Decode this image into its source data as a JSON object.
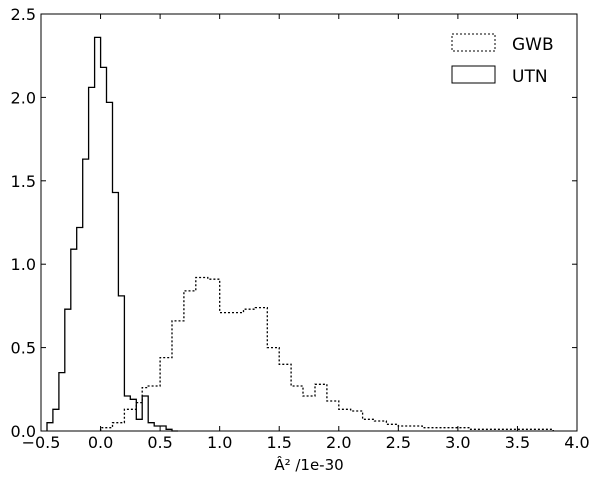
{
  "chart_data": {
    "type": "step-histogram",
    "xlabel": "Â² /1e-30",
    "xlim": [
      -0.5,
      4.0
    ],
    "ylim": [
      0.0,
      2.5
    ],
    "xticks": [
      "−0.5",
      "0.0",
      "0.5",
      "1.0",
      "1.5",
      "2.0",
      "2.5",
      "3.0",
      "3.5",
      "4.0"
    ],
    "xtick_values": [
      -0.5,
      0.0,
      0.5,
      1.0,
      1.5,
      2.0,
      2.5,
      3.0,
      3.5,
      4.0
    ],
    "yticks": [
      "0.0",
      "0.5",
      "1.0",
      "1.5",
      "2.0",
      "2.5"
    ],
    "ytick_values": [
      0.0,
      0.5,
      1.0,
      1.5,
      2.0,
      2.5
    ],
    "grid": false,
    "legend_position": "top-right",
    "series": [
      {
        "name": "GWB",
        "style": "dotted",
        "edges": [
          0.0,
          0.1,
          0.2,
          0.3,
          0.35,
          0.4,
          0.5,
          0.6,
          0.7,
          0.8,
          0.9,
          1.0,
          1.1,
          1.2,
          1.3,
          1.4,
          1.5,
          1.6,
          1.7,
          1.8,
          1.9,
          2.0,
          2.1,
          2.2,
          2.3,
          2.4,
          2.5,
          2.6,
          2.7,
          2.8,
          2.9,
          3.0,
          3.1,
          3.2,
          3.3,
          3.4,
          3.5,
          3.6,
          3.7,
          3.8
        ],
        "values": [
          0.02,
          0.05,
          0.13,
          0.17,
          0.26,
          0.27,
          0.44,
          0.66,
          0.84,
          0.92,
          0.91,
          0.71,
          0.71,
          0.73,
          0.74,
          0.5,
          0.4,
          0.27,
          0.21,
          0.28,
          0.18,
          0.13,
          0.12,
          0.07,
          0.06,
          0.04,
          0.03,
          0.03,
          0.02,
          0.02,
          0.02,
          0.02,
          0.01,
          0.01,
          0.01,
          0.01,
          0.01,
          0.01,
          0.01
        ]
      },
      {
        "name": "UTN",
        "style": "solid",
        "edges": [
          -0.45,
          -0.4,
          -0.35,
          -0.3,
          -0.25,
          -0.2,
          -0.15,
          -0.1,
          -0.05,
          0.0,
          0.05,
          0.1,
          0.15,
          0.2,
          0.25,
          0.3,
          0.35,
          0.4,
          0.45,
          0.5,
          0.55,
          0.6,
          0.65
        ],
        "values": [
          0.05,
          0.13,
          0.35,
          0.73,
          1.09,
          1.22,
          1.63,
          2.06,
          2.36,
          2.18,
          1.97,
          1.43,
          0.81,
          0.21,
          0.19,
          0.07,
          0.21,
          0.05,
          0.03,
          0.03,
          0.01,
          0.0
        ]
      }
    ]
  }
}
